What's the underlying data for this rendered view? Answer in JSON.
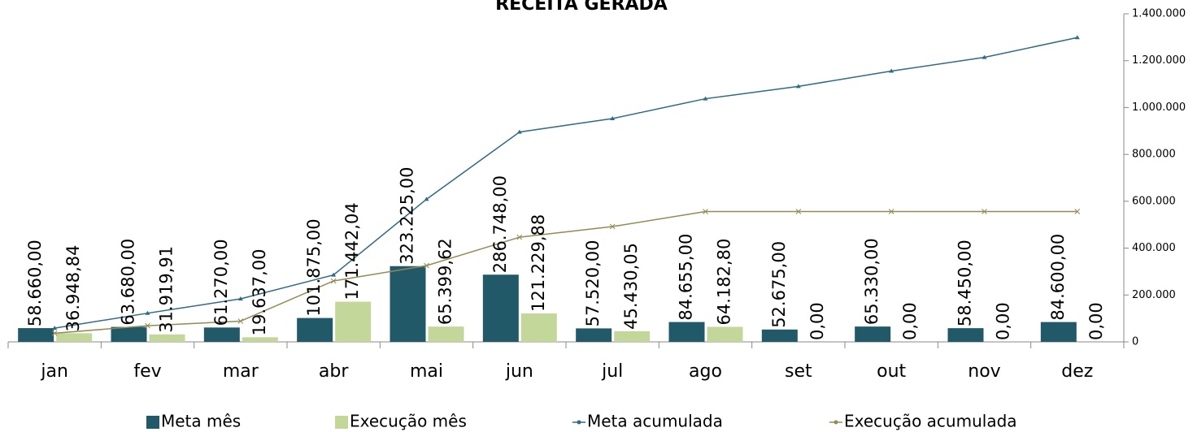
{
  "chart_data": {
    "type": "bar",
    "title": "RECEITA GERADA",
    "categories": [
      "jan",
      "fev",
      "mar",
      "abr",
      "mai",
      "jun",
      "jul",
      "ago",
      "set",
      "out",
      "nov",
      "dez"
    ],
    "series": [
      {
        "name": "Meta mês",
        "type": "bar",
        "color": "#215968",
        "values": [
          58660,
          63680,
          61270,
          101875,
          323225,
          286748,
          57520,
          84655,
          52675,
          65330,
          58450,
          84600
        ],
        "value_labels": [
          "58.660,00",
          "63.680,00",
          "61.270,00",
          "101.875,00",
          "323.225,00",
          "286.748,00",
          "57.520,00",
          "84.655,00",
          "52.675,00",
          "65.330,00",
          "58.450,00",
          "84.600,00"
        ]
      },
      {
        "name": "Execução mês",
        "type": "bar",
        "color": "#c4d79b",
        "values": [
          36948.84,
          31919.91,
          19637,
          171442.04,
          65399.62,
          121229.88,
          45430.05,
          64182.8,
          0,
          0,
          0,
          0
        ],
        "value_labels": [
          "36.948,84",
          "31.919,91",
          "19.637,00",
          "171.442,04",
          "65.399,62",
          "121.229,88",
          "45.430,05",
          "64.182,80",
          "0,00",
          "0,00",
          "0,00",
          "0,00"
        ]
      },
      {
        "name": "Meta acumulada",
        "type": "line",
        "color": "#2e6b85",
        "values": [
          58660,
          122340,
          183610,
          285485,
          608710,
          895458,
          952978,
          1037633,
          1090308,
          1155638,
          1214088,
          1298688
        ]
      },
      {
        "name": "Execução acumulada",
        "type": "line",
        "color": "#948a54",
        "values": [
          36948.84,
          68868.75,
          88505.75,
          259947.79,
          325347.41,
          446577.29,
          492007.34,
          556190.14,
          556190.14,
          556190.14,
          556190.14,
          556190.14
        ]
      }
    ],
    "ylim": [
      0,
      1400000
    ],
    "yticks": [
      0,
      {
        "value": 200000,
        "label": "200.000"
      },
      {
        "value": 400000,
        "label": "400.000"
      },
      {
        "value": 600000,
        "label": "600.000"
      },
      {
        "value": 800000,
        "label": "800.000"
      },
      {
        "value": 1000000,
        "label": "1.000.000"
      },
      {
        "value": 1200000,
        "label": "1.200.000"
      },
      {
        "value": 1400000,
        "label": "1.400.000"
      }
    ],
    "legend": "bottom"
  }
}
